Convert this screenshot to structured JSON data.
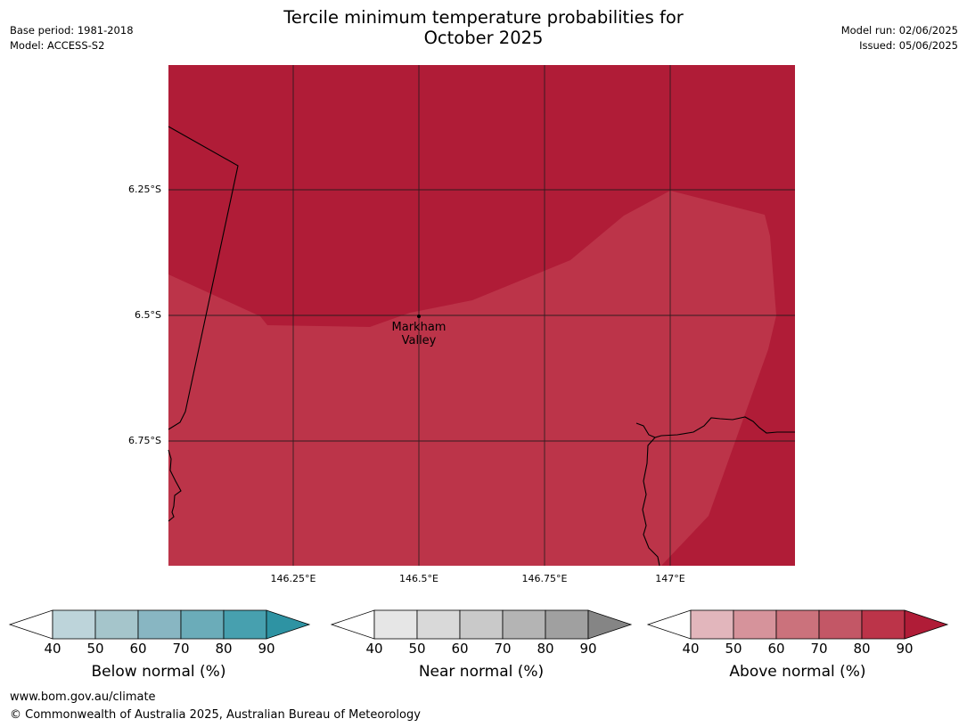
{
  "header": {
    "title_line1": "Tercile minimum temperature probabilities for",
    "title_line2": "October 2025",
    "base_period": "Base period: 1981-2018",
    "model": "Model: ACCESS-S2",
    "model_run": "Model run: 02/06/2025",
    "issued": "Issued: 05/06/2025"
  },
  "map": {
    "latitude_labels": [
      "6.25°S",
      "6.5°S",
      "6.75°S"
    ],
    "longitude_labels": [
      "146.25°E",
      "146.5°E",
      "146.75°E",
      "147°E"
    ],
    "place_line1": "Markham",
    "place_line2": "Valley",
    "region_colors": {
      "above_90": "#b01c37",
      "above_80_90": "#bc3449"
    }
  },
  "colorbars": [
    {
      "title": "Below normal (%)",
      "ticks": [
        "40",
        "50",
        "60",
        "70",
        "80",
        "90"
      ],
      "colors": [
        "#bdd4da",
        "#a5c5cb",
        "#88b6c2",
        "#6bacb9",
        "#47a0af",
        "#2e93a3"
      ]
    },
    {
      "title": "Near normal (%)",
      "ticks": [
        "40",
        "50",
        "60",
        "70",
        "80",
        "90"
      ],
      "colors": [
        "#e6e6e6",
        "#d9d9d9",
        "#c9c9c9",
        "#b4b4b4",
        "#a0a0a0",
        "#858585"
      ]
    },
    {
      "title": "Above normal (%)",
      "ticks": [
        "40",
        "50",
        "60",
        "70",
        "80",
        "90"
      ],
      "colors": [
        "#e2b6bc",
        "#d6939b",
        "#cb727c",
        "#c35766",
        "#bc3449",
        "#b01c37"
      ]
    }
  ],
  "footer": {
    "url": "www.bom.gov.au/climate",
    "copyright": "© Commonwealth of Australia 2025, Australian Bureau of Meteorology"
  }
}
